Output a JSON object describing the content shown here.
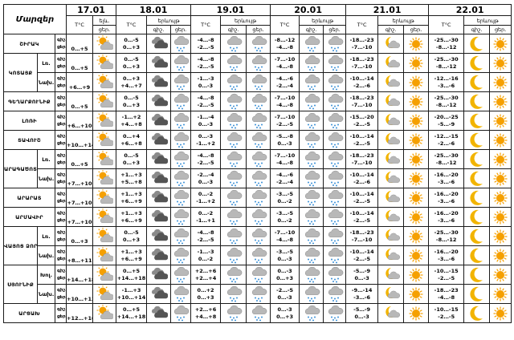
{
  "table": {
    "corner_label": "Մարզեր",
    "dates": [
      "17.01",
      "18.01",
      "19.01",
      "20.01",
      "21.01",
      "22.01"
    ],
    "sub_headers": {
      "temp": "T°C",
      "precip": "երևույթ",
      "daynight_first": "ելև.",
      "day": "ցեր.",
      "night": "գիշ."
    },
    "period_labels": [
      "գիշ.",
      "ցեր."
    ],
    "rows": [
      {
        "region": "ՇԻՐԱԿ",
        "sub": "",
        "t17": "0…+5",
        "i17": "sun-cloud",
        "t18": [
          "0…-5",
          "0…+3"
        ],
        "i18": [
          "dark-cloud",
          "cloud-snow"
        ],
        "t19": [
          "-4…-8",
          "-2…-5"
        ],
        "i19": [
          "cloud-snow",
          "cloud-snow"
        ],
        "t20": [
          "-8…-12",
          "-4…-8"
        ],
        "i20": [
          "cloud-snow",
          "cloud-snow"
        ],
        "t21": [
          "-18…-23",
          "-7…-10"
        ],
        "i21": [
          "moon-cloud",
          "sun"
        ],
        "t22": [
          "-25…-30",
          "-8…-12"
        ],
        "i22": [
          "moon",
          "sun"
        ]
      },
      {
        "region": "ԿՈՏԱՅՔ",
        "sub": "Լռ.",
        "t17": "0…+5",
        "i17": "sun-cloud",
        "t18": [
          "0…-5",
          "0…+3"
        ],
        "i18": [
          "dark-cloud",
          "cloud-snow"
        ],
        "t19": [
          "-4…-8",
          "-2…-5"
        ],
        "i19": [
          "cloud-snow",
          "cloud-snow"
        ],
        "t20": [
          "-7…-10",
          "-4…-8"
        ],
        "i20": [
          "cloud-snow",
          "cloud-snow"
        ],
        "t21": [
          "-18…-23",
          "-7…-10"
        ],
        "i21": [
          "moon-cloud",
          "sun"
        ],
        "t22": [
          "-25…-30",
          "-8…-12"
        ],
        "i22": [
          "moon",
          "sun"
        ]
      },
      {
        "region": "",
        "sub": "Նախ.",
        "t17": "+6…+9",
        "i17": "sun-cloud",
        "t18": [
          "0…+3",
          "+4…+7"
        ],
        "i18": [
          "dark-cloud",
          "cloud-snow"
        ],
        "t19": [
          "-1…-3",
          "0…-3"
        ],
        "i19": [
          "cloud-snow",
          "cloud-snow"
        ],
        "t20": [
          "-4…-6",
          "-2…-4"
        ],
        "i20": [
          "cloud-snow",
          "cloud-snow"
        ],
        "t21": [
          "-10…-14",
          "-2…-6"
        ],
        "i21": [
          "moon-cloud",
          "sun"
        ],
        "t22": [
          "-12…-16",
          "-3…-6"
        ],
        "i22": [
          "moon",
          "sun"
        ]
      },
      {
        "region": "ԳԵՂԱՐՔՈՒՆԻՔ",
        "sub": "",
        "t17": "0…+5",
        "i17": "sun-cloud",
        "t18": [
          "0…-5",
          "0…+3"
        ],
        "i18": [
          "dark-cloud",
          "cloud-snow"
        ],
        "t19": [
          "-4…-8",
          "-2…-5"
        ],
        "i19": [
          "cloud-snow",
          "cloud-snow"
        ],
        "t20": [
          "-7…-10",
          "-4…-8"
        ],
        "i20": [
          "cloud-snow",
          "cloud-snow"
        ],
        "t21": [
          "-18…-23",
          "-7…-10"
        ],
        "i21": [
          "moon-cloud",
          "sun"
        ],
        "t22": [
          "-25…-30",
          "-8…-12"
        ],
        "i22": [
          "moon",
          "sun"
        ]
      },
      {
        "region": "ԼՈՌԻ",
        "sub": "",
        "t17": "+6…+10",
        "i17": "sun-cloud",
        "t18": [
          "-1…+2",
          "+4…+8"
        ],
        "i18": [
          "dark-cloud",
          "cloud-snow"
        ],
        "t19": [
          "-1…-4",
          "0…-3"
        ],
        "i19": [
          "cloud-snow",
          "cloud-snow"
        ],
        "t20": [
          "-7…-10",
          "-2…-5"
        ],
        "i20": [
          "cloud-snow",
          "cloud-snow"
        ],
        "t21": [
          "-15…-20",
          "-2…-5"
        ],
        "i21": [
          "moon-cloud",
          "sun"
        ],
        "t22": [
          "-20…-25",
          "-5…-9"
        ],
        "i22": [
          "moon",
          "sun"
        ]
      },
      {
        "region": "ՏԱՎՈՒՇ",
        "sub": "",
        "t17": "+10…+14",
        "i17": "sun-cloud",
        "t18": [
          "0…+4",
          "+6…+8"
        ],
        "i18": [
          "dark-cloud",
          "cloud-snow"
        ],
        "t19": [
          "0…-3",
          "-1…+2"
        ],
        "i19": [
          "cloud-snow",
          "cloud-snow"
        ],
        "t20": [
          "-5…-8",
          "0…-3"
        ],
        "i20": [
          "cloud-snow",
          "cloud-snow"
        ],
        "t21": [
          "-10…-14",
          "-2…-5"
        ],
        "i21": [
          "moon-cloud",
          "sun"
        ],
        "t22": [
          "-12…-15",
          "-2…-6"
        ],
        "i22": [
          "moon",
          "sun"
        ]
      },
      {
        "region": "ԱՐԱԳԱԾՈՏՆ",
        "sub": "Լռ.",
        "t17": "0…+5",
        "i17": "sun-cloud",
        "t18": [
          "0…-5",
          "0…+3"
        ],
        "i18": [
          "dark-cloud",
          "cloud-snow"
        ],
        "t19": [
          "-4…-8",
          "-2…-5"
        ],
        "i19": [
          "cloud-snow",
          "cloud-snow"
        ],
        "t20": [
          "-7…-10",
          "-4…-8"
        ],
        "i20": [
          "cloud-snow",
          "cloud-snow"
        ],
        "t21": [
          "-18…-23",
          "-7…-10"
        ],
        "i21": [
          "moon-cloud",
          "sun"
        ],
        "t22": [
          "-25…-30",
          "-8…-12"
        ],
        "i22": [
          "moon",
          "sun"
        ]
      },
      {
        "region": "",
        "sub": "Նախ.",
        "t17": "+7…+10",
        "i17": "sun-cloud",
        "t18": [
          "+1…+3",
          "+5…+8"
        ],
        "i18": [
          "dark-cloud",
          "cloud-snow"
        ],
        "t19": [
          "-2…-4",
          "0…-3"
        ],
        "i19": [
          "cloud-snow",
          "cloud-snow"
        ],
        "t20": [
          "-4…-6",
          "-2…-4"
        ],
        "i20": [
          "cloud-snow",
          "cloud-snow"
        ],
        "t21": [
          "-10…-14",
          "-2…-6"
        ],
        "i21": [
          "moon-cloud",
          "sun"
        ],
        "t22": [
          "-16…-20",
          "-3…-6"
        ],
        "i22": [
          "moon",
          "sun"
        ]
      },
      {
        "region": "ԱՐԱՐԱՏ",
        "sub": "",
        "t17": "+7…+10",
        "i17": "sun-cloud",
        "t18": [
          "+1…+3",
          "+6…+9"
        ],
        "i18": [
          "dark-cloud",
          "cloud-snow"
        ],
        "t19": [
          "0…-2",
          "-1…+2"
        ],
        "i19": [
          "cloud-snow",
          "cloud-snow"
        ],
        "t20": [
          "-3…-5",
          "0…-2"
        ],
        "i20": [
          "cloud-snow",
          "cloud-snow"
        ],
        "t21": [
          "-10…-14",
          "-2…-5"
        ],
        "i21": [
          "moon-cloud",
          "sun"
        ],
        "t22": [
          "-16…-20",
          "-3…-6"
        ],
        "i22": [
          "moon",
          "sun"
        ]
      },
      {
        "region": "ԱՐՄԱՎԻՐ",
        "sub": "",
        "t17": "+7…+10",
        "i17": "sun-cloud",
        "t18": [
          "+1…+3",
          "+6…+9"
        ],
        "i18": [
          "dark-cloud",
          "cloud-snow"
        ],
        "t19": [
          "0…-2",
          "-1…+1"
        ],
        "i19": [
          "cloud-snow",
          "cloud-snow"
        ],
        "t20": [
          "-3…-5",
          "0…-2"
        ],
        "i20": [
          "cloud-snow",
          "cloud-snow"
        ],
        "t21": [
          "-10…-14",
          "-2…-5"
        ],
        "i21": [
          "moon-cloud",
          "sun"
        ],
        "t22": [
          "-16…-20",
          "-3…-6"
        ],
        "i22": [
          "moon",
          "sun"
        ]
      },
      {
        "region": "ՎԱՅՈՑ ՁՈՐ",
        "sub": "Լռ.",
        "t17": "0…+3",
        "i17": "sun-cloud",
        "t18": [
          "0…-5",
          "0…+3"
        ],
        "i18": [
          "dark-cloud",
          "cloud-snow"
        ],
        "t19": [
          "-4…-8",
          "-2…-5"
        ],
        "i19": [
          "cloud-snow",
          "cloud-snow"
        ],
        "t20": [
          "-7…-10",
          "-4…-8"
        ],
        "i20": [
          "cloud-snow",
          "cloud-snow"
        ],
        "t21": [
          "-18…-23",
          "-7…-10"
        ],
        "i21": [
          "moon-cloud",
          "sun"
        ],
        "t22": [
          "-25…-30",
          "-8…-12"
        ],
        "i22": [
          "moon",
          "sun"
        ]
      },
      {
        "region": "",
        "sub": "Նախ.",
        "t17": "+8…+11",
        "i17": "sun-cloud",
        "t18": [
          "+1…+3",
          "+6…+9"
        ],
        "i18": [
          "dark-cloud",
          "cloud-snow"
        ],
        "t19": [
          "-1…-3",
          "0…-2"
        ],
        "i19": [
          "cloud-snow",
          "cloud-snow"
        ],
        "t20": [
          "-3…-5",
          "0…-3"
        ],
        "i20": [
          "cloud-snow",
          "cloud-snow"
        ],
        "t21": [
          "-10…-14",
          "-2…-5"
        ],
        "i21": [
          "moon-cloud",
          "sun"
        ],
        "t22": [
          "-16…-20",
          "-3…-6"
        ],
        "i22": [
          "moon",
          "sun"
        ]
      },
      {
        "region": "ՍՅՈՒՆԻՔ",
        "sub": "Խոլ.",
        "t17": "+14…+18",
        "i17": "sun-cloud",
        "t18": [
          "0…+5",
          "+14…+18"
        ],
        "i18": [
          "dark-cloud",
          "cloud-snow"
        ],
        "t19": [
          "+2…+6",
          "+2…+4"
        ],
        "i19": [
          "cloud-snow",
          "cloud-snow"
        ],
        "t20": [
          "0…-3",
          "0…+3"
        ],
        "i20": [
          "cloud-snow",
          "cloud-snow"
        ],
        "t21": [
          "-5…-9",
          "0…-3"
        ],
        "i21": [
          "moon-cloud",
          "sun"
        ],
        "t22": [
          "-10…-15",
          "-2…-5"
        ],
        "i22": [
          "moon",
          "sun"
        ]
      },
      {
        "region": "",
        "sub": "Նախ.",
        "t17": "+10…+13",
        "i17": "sun-cloud",
        "t18": [
          "-1…+3",
          "+10…+14"
        ],
        "i18": [
          "dark-cloud",
          "cloud-snow"
        ],
        "t19": [
          "0…+2",
          "0…+3"
        ],
        "i19": [
          "cloud-snow",
          "cloud-snow"
        ],
        "t20": [
          "-2…-5",
          "0…-3"
        ],
        "i20": [
          "cloud-snow",
          "cloud-snow"
        ],
        "t21": [
          "-9…-14",
          "-3…-6"
        ],
        "i21": [
          "moon-cloud",
          "sun"
        ],
        "t22": [
          "-18…-23",
          "-4…-8"
        ],
        "i22": [
          "moon",
          "sun"
        ]
      },
      {
        "region": "ԱՐՑԱԽ",
        "sub": "",
        "t17": "+12…+16",
        "i17": "sun-cloud",
        "t18": [
          "0…+5",
          "+14…+18"
        ],
        "i18": [
          "dark-cloud",
          "cloud-snow"
        ],
        "t19": [
          "+2…+6",
          "+4…+8"
        ],
        "i19": [
          "cloud-snow",
          "cloud-snow"
        ],
        "t20": [
          "0…-3",
          "0…+3"
        ],
        "i20": [
          "cloud-snow",
          "cloud-snow"
        ],
        "t21": [
          "-5…-9",
          "0…-3"
        ],
        "i21": [
          "moon-cloud",
          "sun"
        ],
        "t22": [
          "-10…-15",
          "-2…-5"
        ],
        "i22": [
          "moon",
          "sun"
        ]
      }
    ]
  },
  "colors": {
    "cloud_light": "#b8b8b8",
    "cloud_dark": "#555555",
    "sun": "#f5a000",
    "moon": "#f2b400",
    "precip": "#3a8fd6"
  }
}
